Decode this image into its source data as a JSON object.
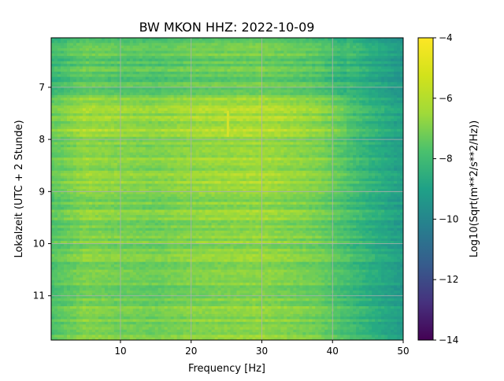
{
  "chart_data": {
    "type": "heatmap",
    "title": "BW MKON  HHZ: 2022-10-09",
    "xlabel": "Frequency [Hz]",
    "ylabel": "Lokalzeit (UTC + 2 Stunde)",
    "xlim": [
      0.2,
      50
    ],
    "ylim": [
      11.85,
      6.05
    ],
    "x_ticks": [
      10,
      20,
      30,
      40,
      50
    ],
    "y_ticks": [
      7,
      8,
      9,
      10,
      11
    ],
    "grid": true,
    "colormap": "viridis",
    "colorbar": {
      "label": "Log10(Sqrt(m**2/s**2/Hz))",
      "range": [
        -14,
        -4
      ],
      "ticks": [
        -4,
        -6,
        -8,
        -10,
        -12,
        -14
      ]
    },
    "approx_level_by_frequency": {
      "freq_hz": [
        0.5,
        5,
        10,
        15,
        20,
        25,
        30,
        35,
        38,
        40,
        42,
        44,
        46,
        48,
        50
      ],
      "log10_amplitude": [
        -6.6,
        -5.8,
        -6.0,
        -6.1,
        -5.8,
        -5.7,
        -5.6,
        -5.9,
        -6.1,
        -6.5,
        -6.9,
        -7.3,
        -7.7,
        -8.1,
        -8.5
      ]
    },
    "approx_time_periods": {
      "hour_start": [
        6.05,
        7.15,
        8.0,
        9.0,
        10.0,
        11.0
      ],
      "hour_end": [
        7.15,
        8.0,
        9.0,
        10.0,
        11.0,
        11.85
      ],
      "relative_level": [
        -0.6,
        0.4,
        0.2,
        0.0,
        -0.1,
        -0.1
      ]
    },
    "transient_near_25hz": {
      "freq_hz": 25.2,
      "hour_start": 7.45,
      "hour_end": 7.95
    }
  }
}
